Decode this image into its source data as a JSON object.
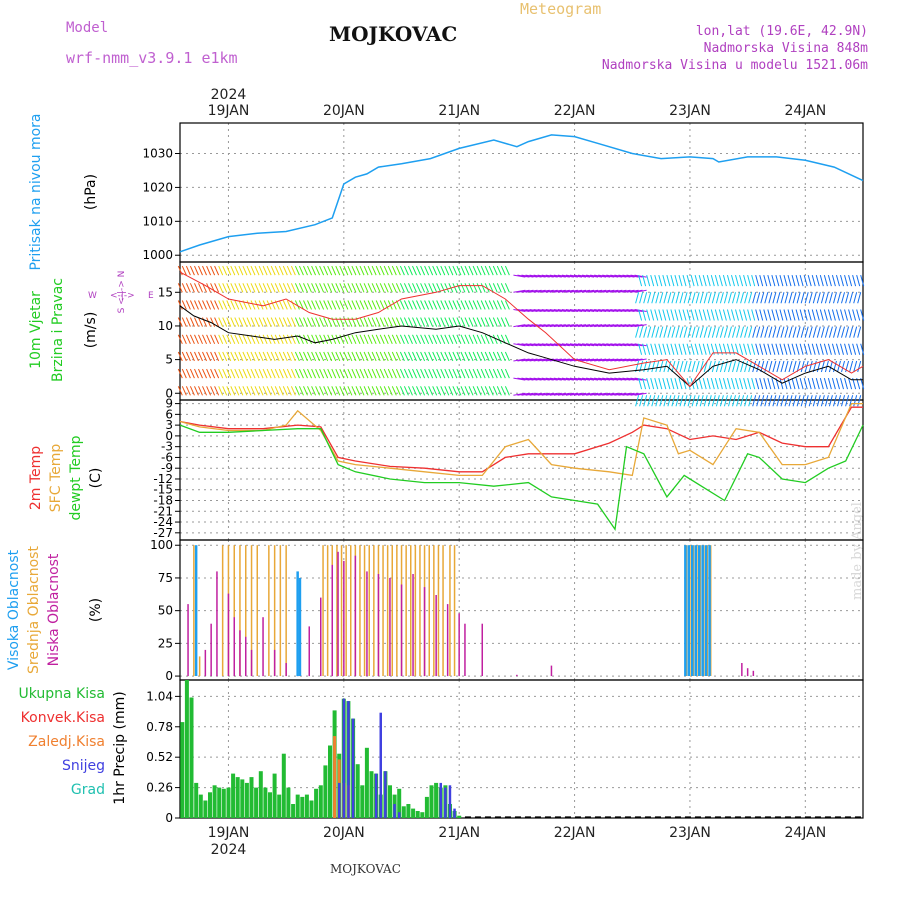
{
  "header": {
    "title": "MOJKOVAC",
    "meteogram": "Meteogram",
    "model_label": "Model",
    "model_name": "wrf-nmm_v3.9.1 e1km",
    "info_line1": "lon,lat (19.6E, 42.9N)",
    "info_line2": "Nadmorska Visina 848m",
    "info_line3": "Nadmorska Visina u modelu 1521.06m",
    "footer": "MOJKOVAC",
    "made_by": "made by Angel"
  },
  "colors": {
    "pressure": "#1e9ff0",
    "temp2m": "#ee3030",
    "sfc": "#e8a838",
    "dewpt": "#22cc22",
    "high_cloud": "#1e9ff0",
    "mid_cloud": "#e8a838",
    "low_cloud": "#c020a0",
    "total_precip": "#22bb33",
    "conv_precip": "#ee3030",
    "ice_precip": "#f08030",
    "snow": "#4040e0",
    "grad": "#20c0b0",
    "wind_speed": "#000000",
    "wind_gust": "#ee3030"
  },
  "chart_data": {
    "type": "meteogram",
    "time_axis": {
      "year": "2024",
      "day_labels": [
        "19JAN",
        "20JAN",
        "21JAN",
        "22JAN",
        "23JAN",
        "24JAN"
      ],
      "range_days": [
        18.58,
        24.5
      ]
    },
    "panels": {
      "pressure": {
        "type": "line",
        "ylabel": "Pritisak na nivou mora",
        "unit": "(hPa)",
        "ylim": [
          998,
          1039
        ],
        "yticks": [
          1000,
          1010,
          1020,
          1030
        ],
        "series": {
          "x": [
            18.58,
            18.75,
            19.0,
            19.25,
            19.5,
            19.75,
            19.9,
            20.0,
            20.1,
            20.2,
            20.3,
            20.5,
            20.75,
            21.0,
            21.3,
            21.5,
            21.6,
            21.8,
            22.0,
            22.2,
            22.5,
            22.75,
            23.0,
            23.2,
            23.25,
            23.5,
            23.75,
            24.0,
            24.25,
            24.5
          ],
          "y": [
            1001,
            1003,
            1005.5,
            1006.5,
            1007,
            1009,
            1011,
            1021,
            1023,
            1024,
            1026,
            1027,
            1028.5,
            1031.5,
            1034,
            1032,
            1033.5,
            1035.5,
            1035,
            1033,
            1030,
            1028.5,
            1029,
            1028.5,
            1027.5,
            1029,
            1029,
            1028,
            1026,
            1022
          ]
        }
      },
      "wind": {
        "type": "line",
        "ylabel": [
          "10m Vjetar",
          "Brzina i Pravac"
        ],
        "unit": "(m/s)",
        "ylim": [
          -1,
          19.5
        ],
        "yticks": [
          0,
          5,
          10,
          15
        ],
        "compass": [
          "W",
          "S",
          "N",
          "E"
        ],
        "speed": {
          "x": [
            18.58,
            18.7,
            18.85,
            19.0,
            19.2,
            19.4,
            19.6,
            19.75,
            19.9,
            20.1,
            20.3,
            20.5,
            20.8,
            21.0,
            21.2,
            21.4,
            21.6,
            21.7,
            22.0,
            22.3,
            22.6,
            22.8,
            23.0,
            23.2,
            23.4,
            23.6,
            23.8,
            24.0,
            24.2,
            24.4,
            24.5
          ],
          "y": [
            13,
            11.5,
            10.5,
            9,
            8.5,
            8,
            8.5,
            7.5,
            8,
            9,
            9.5,
            10,
            9.5,
            10,
            9,
            7.5,
            6,
            5.5,
            4,
            3,
            3.5,
            4,
            1,
            4,
            5,
            3.5,
            1.5,
            3,
            4,
            2,
            2
          ]
        },
        "gust": {
          "x": [
            18.58,
            18.8,
            19.0,
            19.3,
            19.5,
            19.7,
            19.9,
            20.1,
            20.3,
            20.5,
            20.8,
            21.0,
            21.2,
            21.4,
            21.6,
            21.75,
            22.0,
            22.3,
            22.6,
            22.8,
            23.0,
            23.2,
            23.4,
            23.6,
            23.8,
            24.0,
            24.2,
            24.4,
            24.5
          ],
          "y": [
            18,
            16,
            14,
            13,
            14,
            12,
            11,
            11,
            12,
            14,
            15,
            16,
            16,
            14,
            11,
            9,
            5,
            3.5,
            4.5,
            5,
            1,
            6,
            6,
            4,
            2,
            4,
            5,
            3,
            4
          ]
        },
        "arrow_direction_bands": [
          "orange",
          "yellow-green",
          "green",
          "cyan",
          "purple",
          "purple-green",
          "cyan-blue",
          "blue"
        ]
      },
      "temperature": {
        "type": "line",
        "ylabels": [
          "2m Temp",
          "SFC Temp",
          "dewpt Temp"
        ],
        "unit": "(C)",
        "ylim": [
          -29,
          10
        ],
        "yticks": [
          9,
          6,
          3,
          0,
          -3,
          -6,
          -9,
          -12,
          -15,
          -18,
          -21,
          -24,
          -27
        ],
        "series": [
          {
            "name": "2m Temp",
            "x": [
              18.58,
              18.75,
              19.0,
              19.3,
              19.6,
              19.8,
              19.95,
              20.1,
              20.4,
              20.7,
              21.0,
              21.2,
              21.4,
              21.6,
              21.8,
              22.0,
              22.3,
              22.5,
              22.6,
              22.8,
              23.0,
              23.2,
              23.4,
              23.6,
              23.8,
              24.0,
              24.2,
              24.4,
              24.5
            ],
            "y": [
              4,
              3,
              2,
              2,
              3,
              2.5,
              -6,
              -7,
              -8.5,
              -9,
              -10,
              -10,
              -6,
              -5,
              -5,
              -5,
              -2,
              1,
              3,
              2,
              -1,
              0,
              -1,
              1,
              -2,
              -3,
              -3,
              8,
              8
            ]
          },
          {
            "name": "SFC Temp",
            "x": [
              18.58,
              18.75,
              19.0,
              19.3,
              19.5,
              19.6,
              19.8,
              19.95,
              20.1,
              20.4,
              20.7,
              21.0,
              21.2,
              21.4,
              21.6,
              21.8,
              22.0,
              22.3,
              22.5,
              22.6,
              22.8,
              22.9,
              23.0,
              23.2,
              23.4,
              23.6,
              23.8,
              24.0,
              24.2,
              24.4,
              24.5
            ],
            "y": [
              4,
              2.5,
              1.5,
              1.5,
              3,
              7,
              1.5,
              -7,
              -8,
              -9,
              -10,
              -11,
              -11,
              -3,
              -1,
              -8,
              -9,
              -10,
              -11,
              5,
              3,
              -5,
              -4,
              -8,
              2,
              1,
              -8,
              -8,
              -6,
              9,
              9
            ]
          },
          {
            "name": "dewpt Temp",
            "x": [
              18.58,
              18.75,
              19.0,
              19.3,
              19.6,
              19.8,
              19.95,
              20.1,
              20.4,
              20.7,
              21.0,
              21.3,
              21.6,
              21.8,
              22.0,
              22.2,
              22.35,
              22.45,
              22.6,
              22.8,
              22.95,
              23.1,
              23.3,
              23.5,
              23.6,
              23.8,
              24.0,
              24.2,
              24.35,
              24.5
            ],
            "y": [
              3,
              1,
              1,
              1.5,
              2,
              2,
              -8,
              -10,
              -12,
              -13,
              -13,
              -14,
              -13,
              -17,
              -18,
              -19,
              -26,
              -3,
              -5,
              -17,
              -11,
              -14,
              -18,
              -5,
              -6,
              -12,
              -13,
              -9,
              -7,
              3
            ]
          }
        ]
      },
      "clouds": {
        "type": "bar",
        "ylabels": [
          "Visoka Oblacnost",
          "Srednja Oblacnost",
          "Niska Oblacnost"
        ],
        "unit": "(%)",
        "ylim": [
          -3,
          104
        ],
        "yticks": [
          0,
          25,
          50,
          75,
          100
        ],
        "high": {
          "x": [
            18.72,
            19.6,
            19.62,
            22.96,
            22.99,
            23.02,
            23.05,
            23.08,
            23.11,
            23.14,
            23.17
          ],
          "y": [
            100,
            80,
            75,
            100,
            100,
            100,
            100,
            100,
            100,
            100,
            100
          ]
        },
        "mid": {
          "x": [
            18.7,
            18.75,
            18.95,
            19.0,
            19.05,
            19.1,
            19.15,
            19.2,
            19.25,
            19.35,
            19.4,
            19.45,
            19.5,
            19.62,
            19.82,
            19.86,
            19.9,
            19.94,
            19.98,
            20.02,
            20.06,
            20.1,
            20.14,
            20.18,
            20.22,
            20.26,
            20.3,
            20.34,
            20.38,
            20.42,
            20.46,
            20.5,
            20.54,
            20.58,
            20.62,
            20.66,
            20.7,
            20.74,
            20.78,
            20.82,
            20.86,
            20.92,
            20.96,
            22.97,
            23.0,
            23.03,
            23.06,
            23.09,
            23.12,
            23.15,
            23.18
          ],
          "y": [
            100,
            15,
            100,
            100,
            100,
            100,
            100,
            100,
            100,
            100,
            100,
            100,
            100,
            70,
            100,
            100,
            100,
            100,
            100,
            100,
            100,
            100,
            100,
            100,
            100,
            100,
            100,
            100,
            100,
            100,
            100,
            100,
            100,
            100,
            100,
            100,
            100,
            100,
            100,
            100,
            100,
            100,
            100,
            100,
            100,
            100,
            100,
            100,
            100,
            100,
            100
          ]
        },
        "low": {
          "x": [
            18.65,
            18.8,
            18.85,
            18.9,
            19.0,
            19.05,
            19.1,
            19.15,
            19.2,
            19.3,
            19.4,
            19.5,
            19.6,
            19.7,
            19.8,
            19.9,
            19.95,
            20.0,
            20.1,
            20.2,
            20.3,
            20.4,
            20.5,
            20.6,
            20.7,
            20.8,
            20.9,
            21.0,
            21.05,
            21.2,
            21.5,
            21.8,
            23.45,
            23.5,
            23.55
          ],
          "y": [
            55,
            20,
            40,
            80,
            63,
            45,
            35,
            30,
            20,
            45,
            20,
            10,
            48,
            38,
            60,
            85,
            95,
            88,
            92,
            80,
            78,
            75,
            70,
            78,
            68,
            62,
            55,
            48,
            40,
            40,
            1,
            8,
            10,
            6,
            4
          ]
        }
      },
      "precip": {
        "type": "bar",
        "ylabels": [
          "Ukupna Kisa",
          "Konvek.Kisa",
          "Zaledj.Kisa",
          "Snijeg",
          "Grad"
        ],
        "axis_label": "1hr Precip (mm)",
        "ylim": [
          0,
          1.18
        ],
        "yticks": [
          0,
          0.26,
          0.52,
          0.78,
          1.04
        ],
        "total": {
          "x": [
            18.6,
            18.64,
            18.68,
            18.72,
            18.76,
            18.8,
            18.84,
            18.88,
            18.92,
            18.96,
            19.0,
            19.04,
            19.08,
            19.12,
            19.16,
            19.2,
            19.24,
            19.28,
            19.32,
            19.36,
            19.4,
            19.44,
            19.48,
            19.52,
            19.56,
            19.6,
            19.64,
            19.68,
            19.72,
            19.76,
            19.8,
            19.84,
            19.88,
            19.92,
            19.96,
            20.0,
            20.04,
            20.08,
            20.12,
            20.16,
            20.2,
            20.24,
            20.28,
            20.32,
            20.36,
            20.4,
            20.44,
            20.48,
            20.52,
            20.56,
            20.6,
            20.64,
            20.68,
            20.72,
            20.76,
            20.8,
            20.84,
            20.88,
            20.92,
            20.96,
            21.0
          ],
          "y": [
            0.82,
            1.18,
            1.03,
            0.3,
            0.2,
            0.15,
            0.22,
            0.28,
            0.26,
            0.25,
            0.26,
            0.38,
            0.35,
            0.33,
            0.3,
            0.35,
            0.26,
            0.4,
            0.26,
            0.22,
            0.38,
            0.2,
            0.55,
            0.26,
            0.12,
            0.2,
            0.18,
            0.2,
            0.15,
            0.25,
            0.28,
            0.45,
            0.62,
            0.92,
            0.55,
            1.02,
            1.0,
            0.85,
            0.46,
            0.28,
            0.6,
            0.4,
            0.38,
            0.2,
            0.4,
            0.28,
            0.2,
            0.25,
            0.1,
            0.12,
            0.08,
            0.06,
            0.05,
            0.18,
            0.28,
            0.3,
            0.26,
            0.28,
            0.12,
            0.06,
            0.02
          ]
        },
        "snow": {
          "x": [
            19.96,
            20.0,
            20.04,
            20.08,
            20.28,
            20.32,
            20.36,
            20.44,
            20.48,
            20.84,
            20.88,
            20.92,
            20.96
          ],
          "y": [
            0.3,
            1.02,
            1.0,
            0.85,
            0.38,
            0.9,
            0.4,
            0.12,
            0.05,
            0.3,
            0.26,
            0.28,
            0.08
          ]
        },
        "ice": {
          "x": [
            19.92,
            19.96,
            20.0,
            20.04
          ],
          "y": [
            0.7,
            0.5,
            0.3,
            0.28
          ]
        }
      }
    }
  }
}
